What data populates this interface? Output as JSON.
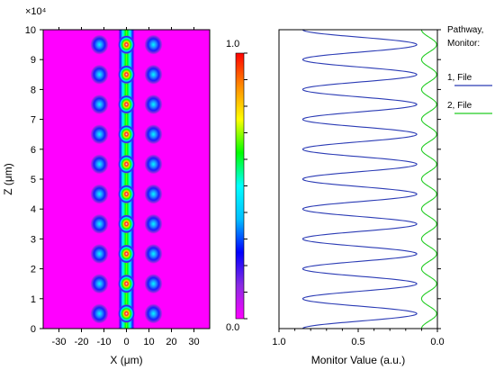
{
  "chart_data": [
    {
      "type": "heatmap",
      "title": "",
      "xlabel": "X (μm)",
      "ylabel": "Z (μm)",
      "y_exponent_label": "×10⁴",
      "xlim": [
        -37,
        37
      ],
      "ylim": [
        0,
        10
      ],
      "x_ticks": [
        -30,
        -20,
        -10,
        0,
        10,
        20,
        30
      ],
      "y_ticks": [
        0,
        1,
        2,
        3,
        4,
        5,
        6,
        7,
        8,
        9,
        10
      ],
      "colorbar": {
        "min_label": "0.0",
        "max_label": "1.0",
        "colors": [
          "#ff00ff",
          "#8a2be2",
          "#0000ff",
          "#00bfff",
          "#00ffff",
          "#00ff00",
          "#ffff00",
          "#ff8c00",
          "#ff0000"
        ]
      },
      "waveguides": [
        {
          "name": "left",
          "x": -12
        },
        {
          "name": "center",
          "x": 0
        },
        {
          "name": "right",
          "x": 12
        }
      ],
      "spot_period_z": 1.0,
      "spot_offset_z": 0.5,
      "background_color": "#ff00ff"
    },
    {
      "type": "line",
      "xlabel": "Monitor Value (a.u.)",
      "ylabel": "",
      "xlim": [
        1.0,
        0.0
      ],
      "ylim": [
        0,
        10
      ],
      "x_ticks": [
        "1.0",
        "0.5",
        "0.0"
      ],
      "legend_title": [
        "Pathway,",
        "Monitor:"
      ],
      "series": [
        {
          "name": "1, File",
          "color": "#2b3bb5",
          "min": 0.13,
          "max": 0.85,
          "period_z": 1.0
        },
        {
          "name": "2, File",
          "color": "#22cc22",
          "min": 0.005,
          "max": 0.1,
          "period_z": 1.0
        }
      ]
    }
  ]
}
